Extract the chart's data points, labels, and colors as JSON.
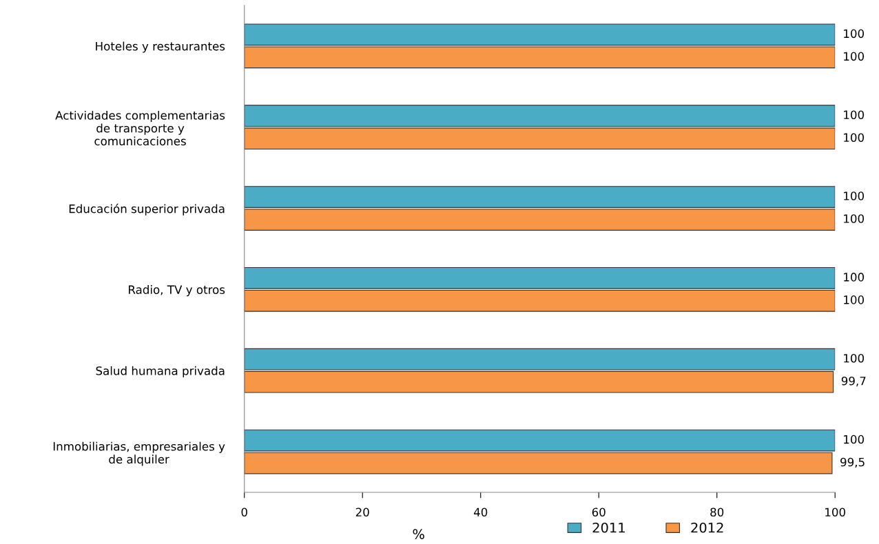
{
  "chart_data": {
    "type": "bar",
    "orientation": "horizontal",
    "xlabel": "%",
    "categories": [
      "Hoteles y restaurantes",
      "Actividades complementarias\nde transporte y\ncomunicaciones",
      "Educación superior privada",
      "Radio, TV y otros",
      "Salud humana privada",
      "Inmobiliarias, empresariales y\nde alquiler"
    ],
    "series": [
      {
        "name": "2011",
        "color": "#4bacc6",
        "values": [
          100,
          100,
          100,
          100,
          100,
          100
        ],
        "value_labels": [
          "100",
          "100",
          "100",
          "100",
          "100",
          "100"
        ]
      },
      {
        "name": "2012",
        "color": "#f79646",
        "values": [
          100,
          100,
          100,
          100,
          99.7,
          99.5
        ],
        "value_labels": [
          "100",
          "100",
          "100",
          "100",
          "99,7",
          "99,5"
        ]
      }
    ],
    "xlim": [
      0,
      100
    ],
    "xticks": [
      0,
      20,
      40,
      60,
      80,
      100
    ],
    "grid": false,
    "legend": "bottom right"
  }
}
